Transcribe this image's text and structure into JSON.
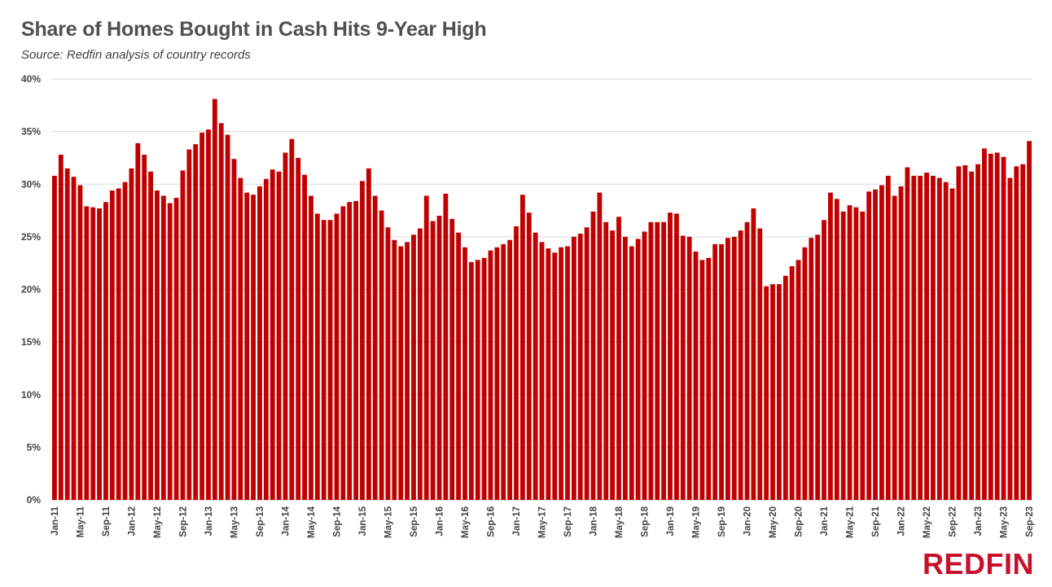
{
  "title": "Share of Homes Bought in Cash Hits 9-Year High",
  "subtitle": "Source: Redfin analysis of country records",
  "brand": {
    "name": "REDFIN",
    "color": "#c8102e"
  },
  "chart_data": {
    "type": "bar",
    "title": "Share of Homes Bought in Cash Hits 9-Year High",
    "xlabel": "",
    "ylabel": "",
    "ylim": [
      0,
      40
    ],
    "yticks": [
      "0%",
      "5%",
      "10%",
      "15%",
      "20%",
      "25%",
      "30%",
      "35%",
      "40%"
    ],
    "xtick_labels": [
      "Jan-11",
      "May-11",
      "Sep-11",
      "Jan-12",
      "May-12",
      "Sep-12",
      "Jan-13",
      "May-13",
      "Sep-13",
      "Jan-14",
      "May-14",
      "Sep-14",
      "Jan-15",
      "May-15",
      "Sep-15",
      "Jan-16",
      "May-16",
      "Sep-16",
      "Jan-17",
      "May-17",
      "Sep-17",
      "Jan-18",
      "May-18",
      "Sep-18",
      "Jan-19",
      "May-19",
      "Sep-19",
      "Jan-20",
      "May-20",
      "Sep-20",
      "Jan-21",
      "May-21",
      "Sep-21",
      "Jan-22",
      "May-22",
      "Sep-22",
      "Jan-23",
      "May-23",
      "Sep-23"
    ],
    "start_month": "Jan-11",
    "bar_color": "#c00000",
    "grid": true,
    "legend": "none",
    "values": [
      30.8,
      32.8,
      31.5,
      30.7,
      29.9,
      27.9,
      27.8,
      27.7,
      28.3,
      29.4,
      29.6,
      30.2,
      31.5,
      33.9,
      32.8,
      31.2,
      29.4,
      28.9,
      28.2,
      28.7,
      31.3,
      33.3,
      33.8,
      34.9,
      35.2,
      38.1,
      35.8,
      34.7,
      32.4,
      30.6,
      29.2,
      29.0,
      29.8,
      30.5,
      31.4,
      31.2,
      33.0,
      34.3,
      32.5,
      30.9,
      28.9,
      27.2,
      26.6,
      26.6,
      27.2,
      27.9,
      28.3,
      28.4,
      30.3,
      31.5,
      28.9,
      27.5,
      25.9,
      24.7,
      24.1,
      24.5,
      25.2,
      25.8,
      28.9,
      26.5,
      27.0,
      29.1,
      26.7,
      25.4,
      24.0,
      22.6,
      22.8,
      23.0,
      23.7,
      24.0,
      24.3,
      24.7,
      26.0,
      29.0,
      27.3,
      25.4,
      24.5,
      23.9,
      23.5,
      24.0,
      24.1,
      25.0,
      25.3,
      25.9,
      27.4,
      29.2,
      26.4,
      25.6,
      26.9,
      25.0,
      24.1,
      24.8,
      25.5,
      26.4,
      26.4,
      26.4,
      27.3,
      27.2,
      25.1,
      25.0,
      23.6,
      22.8,
      23.0,
      24.3,
      24.3,
      24.9,
      25.0,
      25.6,
      26.4,
      27.7,
      25.8,
      20.3,
      20.5,
      20.5,
      21.3,
      22.2,
      22.8,
      24.0,
      24.9,
      25.2,
      26.6,
      29.2,
      28.6,
      27.4,
      28.0,
      27.8,
      27.4,
      29.3,
      29.5,
      29.9,
      30.8,
      28.9,
      29.8,
      31.6,
      30.8,
      30.8,
      31.1,
      30.8,
      30.6,
      30.2,
      29.6,
      31.7,
      31.8,
      31.2,
      31.9,
      33.4,
      32.9,
      33.0,
      32.6,
      30.6,
      31.7,
      31.9,
      34.1
    ]
  }
}
